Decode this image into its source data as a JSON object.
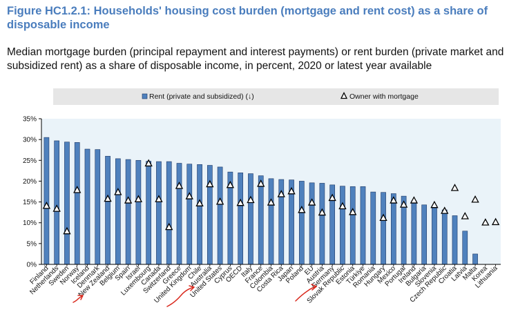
{
  "figure": {
    "title": "Figure HC1.2.1: Households' housing cost burden (mortgage and rent cost) as a share of disposable income",
    "subtitle": "Median mortgage burden (principal repayment and interest payments) or rent burden (private market and subsidized rent) as a share of disposable income, in percent, 2020 or latest year available"
  },
  "colors": {
    "title": "#4a7dbd",
    "bar": "#4f81bd",
    "bar_edge": "#1f3864",
    "plot_bg": "#eaf3f9",
    "legend_bg": "#e6e6e6",
    "annotation": "#d9281c"
  },
  "chart_data": {
    "type": "bar",
    "categories": [
      "Finland",
      "Netherlands",
      "Sweden",
      "Norway",
      "Iceland",
      "Denmark",
      "New Zealand",
      "Belgium",
      "Spain",
      "Israel",
      "Luxembourg",
      "Canada",
      "Switzerland",
      "Greece",
      "United Kingdom",
      "Chile",
      "Australia",
      "United States",
      "Cyprus",
      "OECD",
      "Italy",
      "France",
      "Colombia",
      "Costa Rica",
      "Japan",
      "Poland",
      "EU",
      "Austria",
      "Germany",
      "Slovak Republic",
      "Estonia",
      "Türkiye",
      "Romania",
      "Hungary",
      "Mexico",
      "Portugal",
      "Ireland",
      "Bulgaria",
      "Slovenia",
      "Czech Republic",
      "Croatia",
      "Latvia",
      "Malta",
      "Korea",
      "Lithuania"
    ],
    "series": [
      {
        "name": "Rent (private and subsidized) (↓)",
        "type": "bar",
        "values": [
          30.5,
          29.7,
          29.4,
          29.3,
          27.7,
          27.6,
          26.0,
          25.4,
          25.2,
          25.0,
          24.8,
          24.7,
          24.7,
          24.3,
          24.1,
          24.0,
          23.8,
          23.4,
          22.2,
          22.0,
          21.8,
          21.3,
          20.6,
          20.4,
          20.3,
          20.0,
          19.6,
          19.5,
          19.1,
          18.8,
          18.7,
          18.7,
          17.4,
          17.3,
          17.0,
          16.4,
          15.3,
          14.3,
          13.9,
          13.1,
          11.7,
          8.0,
          2.5,
          null,
          null
        ]
      },
      {
        "name": "Owner with mortgage",
        "type": "marker",
        "values": [
          14.1,
          13.4,
          8.0,
          17.9,
          null,
          null,
          15.8,
          17.4,
          15.4,
          15.7,
          24.3,
          15.7,
          9.0,
          18.9,
          16.4,
          14.7,
          19.3,
          15.1,
          19.1,
          14.8,
          15.5,
          19.4,
          14.9,
          16.9,
          17.6,
          13.1,
          14.9,
          12.5,
          16.0,
          14.0,
          12.6,
          null,
          null,
          11.2,
          15.4,
          14.4,
          15.4,
          null,
          14.3,
          12.9,
          18.4,
          11.6,
          15.6,
          10.1,
          10.2
        ]
      }
    ],
    "y_ticks": [
      "0%",
      "5%",
      "10%",
      "15%",
      "20%",
      "25%",
      "30%",
      "35%"
    ],
    "ylim": [
      0,
      35
    ],
    "grid": false,
    "legend_position": "top"
  }
}
